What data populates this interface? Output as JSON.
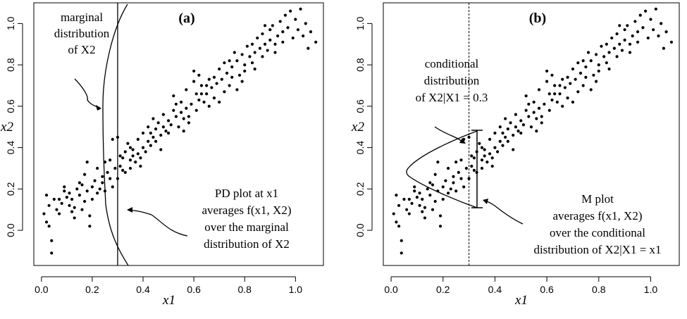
{
  "chart_data": [
    {
      "type": "scatter",
      "panel_label": "(a)",
      "xlabel": "x1",
      "ylabel": "x2",
      "xlim": [
        -0.03,
        1.11
      ],
      "ylim": [
        -0.17,
        1.1
      ],
      "xticks": [
        "0.0",
        "0.2",
        "0.4",
        "0.6",
        "0.8",
        "1.0"
      ],
      "yticks": [
        "0.0",
        "0.2",
        "0.4",
        "0.6",
        "0.8",
        "1.0"
      ],
      "vertical_line_x": 0.3,
      "annotations": {
        "marginal": [
          "marginal",
          "distribution",
          "of X2"
        ],
        "pd": [
          "PD plot at x1",
          "averages f(x1, X2)",
          "over the marginal",
          "distribution of X2"
        ]
      }
    },
    {
      "type": "scatter",
      "panel_label": "(b)",
      "xlabel": "x1",
      "ylabel": "x2",
      "xlim": [
        -0.03,
        1.11
      ],
      "ylim": [
        -0.17,
        1.1
      ],
      "xticks": [
        "0.0",
        "0.2",
        "0.4",
        "0.6",
        "0.8",
        "1.0"
      ],
      "yticks": [
        "0.0",
        "0.2",
        "0.4",
        "0.6",
        "0.8",
        "1.0"
      ],
      "vertical_line_x": 0.3,
      "conditional_range": [
        0.12,
        0.49
      ],
      "annotations": {
        "conditional": [
          "conditional",
          "distribution",
          "of X2|X1 = 0.3"
        ],
        "m": [
          "M plot",
          "averages f(x1, X2)",
          "over the conditional",
          "distribution of X2|X1 = x1"
        ]
      }
    }
  ],
  "points": [
    [
      0.02,
      0.17
    ],
    [
      0.03,
      0.02
    ],
    [
      0.02,
      0.04
    ],
    [
      0.04,
      -0.05
    ],
    [
      0.04,
      -0.11
    ],
    [
      0.03,
      0.12
    ],
    [
      0.05,
      0.15
    ],
    [
      0.06,
      0.1
    ],
    [
      0.07,
      0.08
    ],
    [
      0.01,
      0.08
    ],
    [
      0.08,
      0.13
    ],
    [
      0.09,
      0.19
    ],
    [
      0.1,
      0.16
    ],
    [
      0.11,
      0.12
    ],
    [
      0.12,
      0.09
    ],
    [
      0.12,
      0.15
    ],
    [
      0.13,
      0.11
    ],
    [
      0.14,
      0.2
    ],
    [
      0.15,
      0.17
    ],
    [
      0.16,
      0.22
    ],
    [
      0.16,
      0.1
    ],
    [
      0.17,
      0.27
    ],
    [
      0.17,
      0.14
    ],
    [
      0.18,
      0.33
    ],
    [
      0.18,
      0.19
    ],
    [
      0.19,
      0.07
    ],
    [
      0.19,
      0.02
    ],
    [
      0.2,
      0.21
    ],
    [
      0.2,
      0.15
    ],
    [
      0.21,
      0.24
    ],
    [
      0.22,
      0.18
    ],
    [
      0.22,
      0.3
    ],
    [
      0.23,
      0.2
    ],
    [
      0.24,
      0.26
    ],
    [
      0.24,
      0.23
    ],
    [
      0.25,
      0.33
    ],
    [
      0.26,
      0.28
    ],
    [
      0.27,
      0.34
    ],
    [
      0.28,
      0.44
    ],
    [
      0.28,
      0.21
    ],
    [
      0.29,
      0.3
    ],
    [
      0.3,
      0.45
    ],
    [
      0.3,
      0.25
    ],
    [
      0.31,
      0.31
    ],
    [
      0.32,
      0.29
    ],
    [
      0.32,
      0.35
    ],
    [
      0.33,
      0.28
    ],
    [
      0.33,
      0.38
    ],
    [
      0.34,
      0.42
    ],
    [
      0.35,
      0.34
    ],
    [
      0.35,
      0.3
    ],
    [
      0.36,
      0.36
    ],
    [
      0.36,
      0.39
    ],
    [
      0.37,
      0.33
    ],
    [
      0.38,
      0.37
    ],
    [
      0.38,
      0.44
    ],
    [
      0.39,
      0.35
    ],
    [
      0.4,
      0.4
    ],
    [
      0.4,
      0.47
    ],
    [
      0.41,
      0.38
    ],
    [
      0.42,
      0.43
    ],
    [
      0.42,
      0.5
    ],
    [
      0.43,
      0.41
    ],
    [
      0.44,
      0.45
    ],
    [
      0.45,
      0.43
    ],
    [
      0.45,
      0.49
    ],
    [
      0.46,
      0.52
    ],
    [
      0.47,
      0.46
    ],
    [
      0.48,
      0.5
    ],
    [
      0.48,
      0.56
    ],
    [
      0.49,
      0.48
    ],
    [
      0.5,
      0.53
    ],
    [
      0.5,
      0.47
    ],
    [
      0.51,
      0.51
    ],
    [
      0.52,
      0.58
    ],
    [
      0.52,
      0.65
    ],
    [
      0.53,
      0.55
    ],
    [
      0.54,
      0.5
    ],
    [
      0.55,
      0.57
    ],
    [
      0.55,
      0.62
    ],
    [
      0.56,
      0.54
    ],
    [
      0.57,
      0.59
    ],
    [
      0.57,
      0.68
    ],
    [
      0.58,
      0.55
    ],
    [
      0.59,
      0.61
    ],
    [
      0.6,
      0.72
    ],
    [
      0.6,
      0.77
    ],
    [
      0.61,
      0.58
    ],
    [
      0.62,
      0.63
    ],
    [
      0.62,
      0.75
    ],
    [
      0.63,
      0.66
    ],
    [
      0.64,
      0.62
    ],
    [
      0.65,
      0.7
    ],
    [
      0.65,
      0.66
    ],
    [
      0.66,
      0.6
    ],
    [
      0.67,
      0.69
    ],
    [
      0.68,
      0.74
    ],
    [
      0.68,
      0.64
    ],
    [
      0.69,
      0.71
    ],
    [
      0.7,
      0.78
    ],
    [
      0.71,
      0.73
    ],
    [
      0.72,
      0.67
    ],
    [
      0.72,
      0.81
    ],
    [
      0.73,
      0.76
    ],
    [
      0.74,
      0.7
    ],
    [
      0.75,
      0.79
    ],
    [
      0.75,
      0.74
    ],
    [
      0.76,
      0.86
    ],
    [
      0.77,
      0.82
    ],
    [
      0.77,
      0.68
    ],
    [
      0.78,
      0.75
    ],
    [
      0.79,
      0.85
    ],
    [
      0.8,
      0.8
    ],
    [
      0.8,
      0.77
    ],
    [
      0.81,
      0.89
    ],
    [
      0.82,
      0.84
    ],
    [
      0.83,
      0.9
    ],
    [
      0.83,
      0.81
    ],
    [
      0.84,
      0.86
    ],
    [
      0.85,
      0.93
    ],
    [
      0.86,
      0.88
    ],
    [
      0.87,
      0.84
    ],
    [
      0.87,
      0.95
    ],
    [
      0.88,
      0.9
    ],
    [
      0.89,
      0.87
    ],
    [
      0.9,
      0.97
    ],
    [
      0.9,
      0.92
    ],
    [
      0.91,
      0.99
    ],
    [
      0.92,
      0.86
    ],
    [
      0.93,
      0.94
    ],
    [
      0.94,
      1.01
    ],
    [
      0.95,
      0.96
    ],
    [
      0.95,
      0.91
    ],
    [
      0.96,
      1.04
    ],
    [
      0.97,
      0.98
    ],
    [
      0.98,
      1.06
    ],
    [
      0.99,
      0.93
    ],
    [
      1.0,
      1.02
    ],
    [
      1.01,
      0.97
    ],
    [
      1.02,
      1.07
    ],
    [
      1.03,
      0.94
    ],
    [
      1.04,
      1.0
    ],
    [
      1.05,
      0.88
    ],
    [
      1.06,
      0.96
    ],
    [
      1.08,
      0.91
    ],
    [
      0.56,
      0.48
    ],
    [
      0.47,
      0.39
    ],
    [
      0.44,
      0.54
    ],
    [
      0.61,
      0.66
    ],
    [
      0.66,
      0.73
    ],
    [
      0.7,
      0.62
    ],
    [
      0.74,
      0.82
    ],
    [
      0.79,
      0.72
    ],
    [
      0.84,
      0.78
    ],
    [
      0.88,
      0.99
    ],
    [
      0.92,
      0.9
    ],
    [
      0.35,
      0.4
    ],
    [
      0.39,
      0.31
    ],
    [
      0.43,
      0.47
    ],
    [
      0.53,
      0.61
    ],
    [
      0.58,
      0.52
    ],
    [
      0.63,
      0.7
    ],
    [
      0.27,
      0.25
    ],
    [
      0.31,
      0.36
    ],
    [
      0.25,
      0.19
    ],
    [
      0.15,
      0.23
    ],
    [
      0.13,
      0.06
    ],
    [
      0.09,
      0.21
    ],
    [
      0.07,
      0.15
    ],
    [
      0.11,
      0.18
    ]
  ]
}
